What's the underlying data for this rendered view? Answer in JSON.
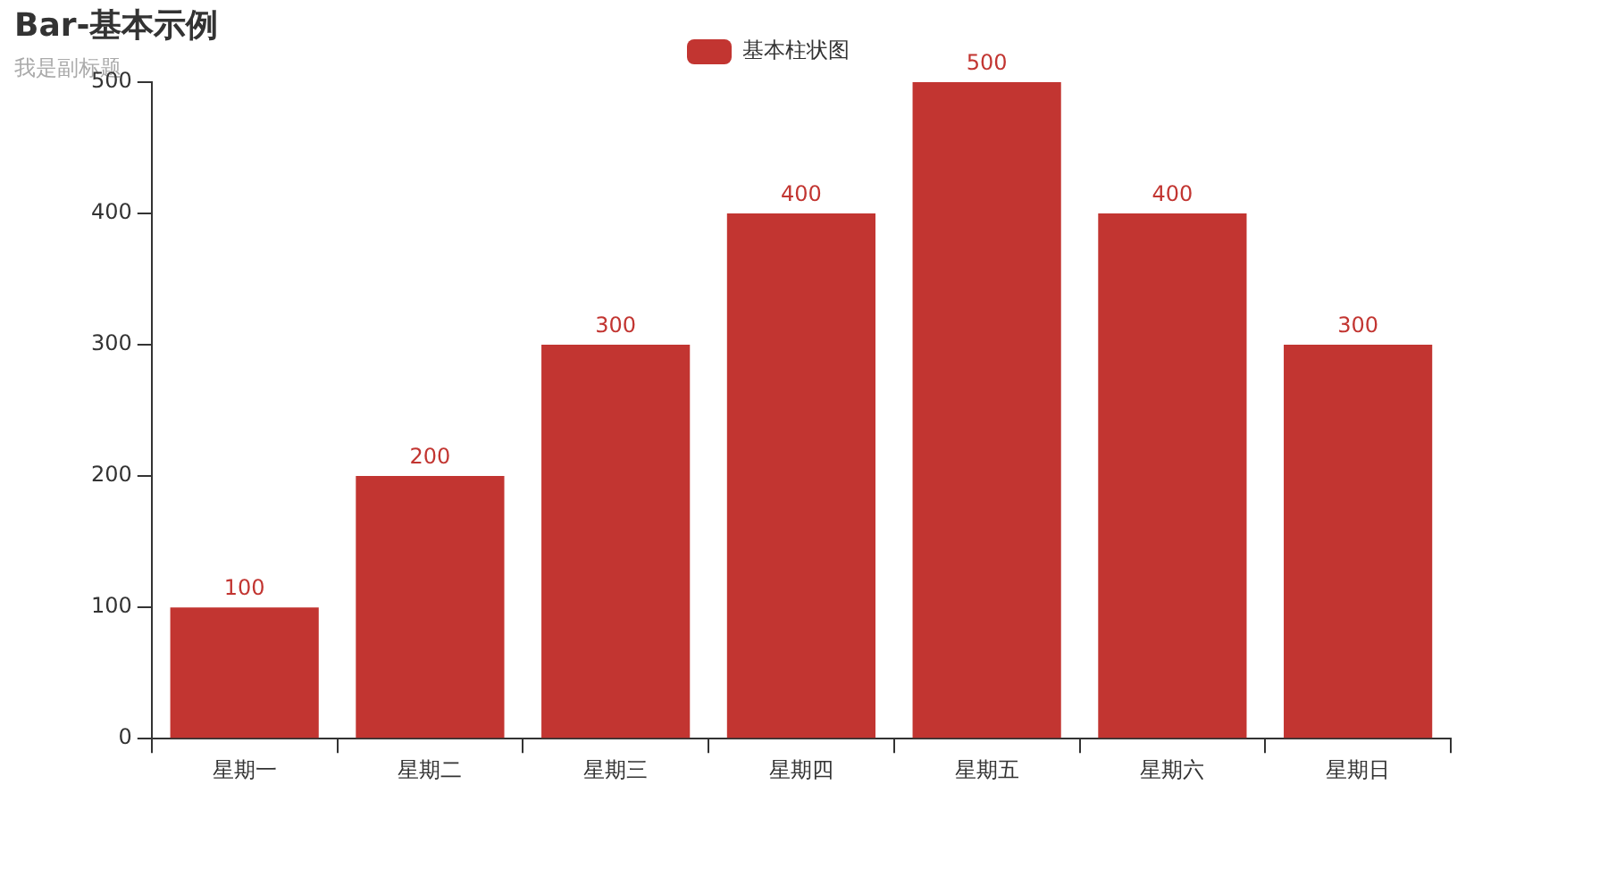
{
  "chart_data": {
    "type": "bar",
    "title": "Bar-基本示例",
    "subtitle": "我是副标题",
    "categories": [
      "星期一",
      "星期二",
      "星期三",
      "星期四",
      "星期五",
      "星期六",
      "星期日"
    ],
    "series": [
      {
        "name": "基本柱状图",
        "color": "#c23531",
        "values": [
          100,
          200,
          300,
          400,
          500,
          400,
          300
        ]
      }
    ],
    "ylim": [
      0,
      500
    ],
    "yticks": [
      0,
      100,
      200,
      300,
      400,
      500
    ],
    "data_labels": true,
    "legend": "top"
  }
}
